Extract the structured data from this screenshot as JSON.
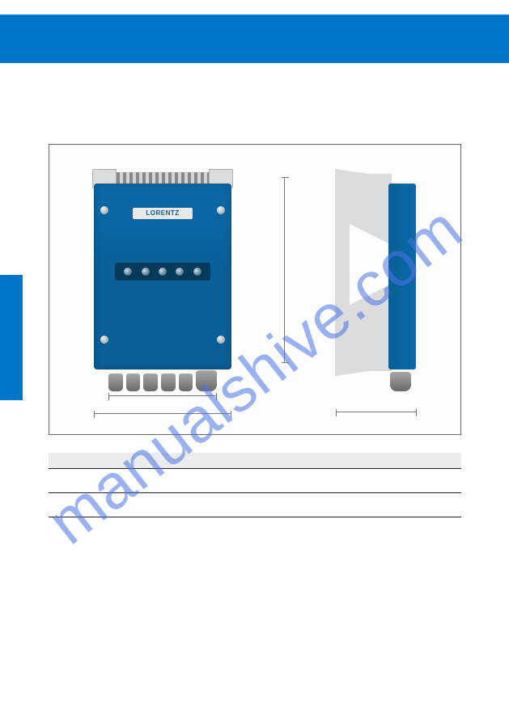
{
  "header": {
    "title": ""
  },
  "figure": {
    "brand_label": "LORENTZ",
    "dimensions": {
      "inner_width_label": "",
      "outer_width_label": "",
      "height_label": "",
      "depth_label": ""
    },
    "colors": {
      "device_body": "#0a5f97",
      "bracket": "#dcdcdc",
      "bar": "#0075c9",
      "led_strip": "#053a5a"
    }
  },
  "table": {
    "header": {
      "col_a": "",
      "col_b": ""
    },
    "rows": [
      {
        "col_a": "",
        "col_b": ""
      },
      {
        "col_a": "",
        "col_b": ""
      }
    ]
  },
  "watermark": {
    "text": "manualshive.com"
  }
}
